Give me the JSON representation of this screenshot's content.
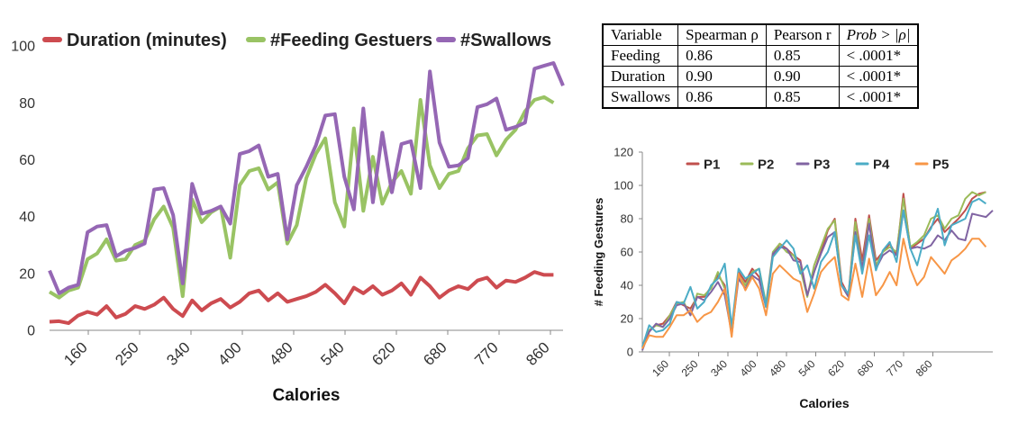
{
  "chart_data": [
    {
      "type": "line",
      "title": "",
      "xlabel": "Calories",
      "ylabel": "",
      "ylim": [
        0,
        100
      ],
      "yticks": [
        0,
        20,
        40,
        60,
        80,
        100
      ],
      "xtick_labels": [
        "160",
        "250",
        "340",
        "400",
        "480",
        "540",
        "620",
        "680",
        "770",
        "860"
      ],
      "legend_position": "top",
      "grid": false,
      "series": [
        {
          "name": "Duration (minutes)",
          "color": "#cd4b50",
          "values": [
            3,
            3.2,
            2.5,
            5.2,
            6.5,
            5.5,
            8.5,
            4.5,
            5.8,
            8.5,
            7.5,
            9,
            11.5,
            7.5,
            5,
            10.5,
            7,
            9.5,
            11,
            8,
            10,
            13,
            14,
            10.5,
            13,
            10,
            11,
            12,
            13.5,
            16,
            13,
            9.5,
            15,
            13,
            15.5,
            12.5,
            14,
            16.5,
            12.5,
            18.5,
            15.5,
            11.5,
            14,
            15.5,
            14.5,
            17.5,
            18.5,
            15,
            17.5,
            17,
            18.5,
            20.5,
            19.5,
            19.5
          ]
        },
        {
          "name": "#Feeding Gestuers",
          "color": "#99c364",
          "values": [
            13.5,
            11.5,
            14,
            15,
            25,
            27,
            32,
            24.5,
            25,
            30,
            31.5,
            39,
            43.5,
            36,
            12,
            46,
            38,
            41.5,
            43.5,
            25.5,
            51,
            56,
            57,
            49.5,
            52,
            30.5,
            37,
            53.5,
            62,
            67.5,
            45,
            36.5,
            71,
            42,
            61,
            44.5,
            52,
            56,
            48,
            81,
            58,
            50,
            55,
            56,
            64,
            68.5,
            69,
            61.5,
            67,
            70.5,
            77,
            81,
            82,
            80
          ]
        },
        {
          "name": "#Swallows",
          "color": "#9567b4",
          "values": [
            21,
            13,
            15,
            16,
            34.5,
            36.5,
            37,
            26,
            28,
            29,
            30.5,
            49.5,
            50,
            40.5,
            16.5,
            51.5,
            41,
            42,
            43.5,
            37.5,
            62,
            63,
            65,
            54,
            55,
            32,
            51,
            57.5,
            65,
            75.5,
            76,
            54,
            42.5,
            78,
            45,
            69.5,
            48.5,
            65.5,
            66.5,
            50,
            91,
            66,
            57.5,
            58,
            60.5,
            78.5,
            79.5,
            81.5,
            70.5,
            71.5,
            73,
            92,
            93,
            94,
            86
          ]
        }
      ]
    },
    {
      "type": "line",
      "title": "",
      "xlabel": "Calories",
      "ylabel": "# Feeding Gestures",
      "ylim": [
        0,
        120
      ],
      "yticks": [
        0,
        20,
        40,
        60,
        80,
        100,
        120
      ],
      "xtick_labels": [
        "160",
        "250",
        "340",
        "400",
        "480",
        "540",
        "620",
        "680",
        "770",
        "860"
      ],
      "legend_position": "top",
      "grid": false,
      "series": [
        {
          "name": "P1",
          "color": "#c0504d",
          "values": [
            3,
            13,
            16,
            17,
            22,
            30,
            28,
            26,
            33,
            33,
            39,
            46,
            40,
            10,
            48,
            42,
            50,
            45,
            28,
            58,
            65,
            62,
            58,
            55,
            34,
            48,
            60,
            73,
            80,
            42,
            34,
            80,
            55,
            82,
            55,
            60,
            65,
            58,
            95,
            62,
            65,
            68,
            75,
            80,
            72,
            76,
            80,
            85,
            92,
            95,
            96
          ]
        },
        {
          "name": "P2",
          "color": "#9bbb59",
          "values": [
            2,
            13,
            16,
            15,
            22,
            29,
            30,
            22,
            35,
            34,
            38,
            48,
            38,
            12,
            46,
            40,
            48,
            50,
            29,
            60,
            65,
            60,
            58,
            50,
            33,
            52,
            63,
            74,
            79,
            40,
            33,
            78,
            50,
            80,
            52,
            60,
            63,
            60,
            92,
            63,
            66,
            70,
            80,
            82,
            74,
            80,
            82,
            92,
            96,
            94,
            96
          ]
        },
        {
          "name": "P3",
          "color": "#8064a2",
          "values": [
            1,
            12,
            17,
            15,
            20,
            28,
            29,
            22,
            33,
            31,
            36,
            42,
            34,
            11,
            44,
            38,
            46,
            43,
            27,
            59,
            63,
            62,
            55,
            54,
            34,
            48,
            59,
            69,
            72,
            40,
            33,
            72,
            50,
            77,
            50,
            58,
            61,
            58,
            85,
            62,
            63,
            62,
            64,
            70,
            67,
            73,
            68,
            67,
            83,
            82,
            81,
            85
          ]
        },
        {
          "name": "P4",
          "color": "#4bacc6",
          "values": [
            3,
            16,
            12,
            13,
            17,
            30,
            29,
            39,
            26,
            30,
            40,
            44,
            53,
            15,
            50,
            44,
            47,
            50,
            27,
            57,
            62,
            67,
            62,
            47,
            52,
            38,
            54,
            60,
            72,
            40,
            35,
            70,
            47,
            70,
            49,
            61,
            66,
            54,
            85,
            62,
            52,
            68,
            74,
            86,
            64,
            76,
            78,
            80,
            90,
            92,
            89
          ]
        },
        {
          "name": "P5",
          "color": "#f79646",
          "values": [
            2,
            10,
            9,
            9,
            15,
            22,
            22,
            25,
            18,
            22,
            24,
            30,
            38,
            9,
            47,
            37,
            45,
            38,
            22,
            47,
            52,
            48,
            44,
            42,
            24,
            35,
            48,
            53,
            57,
            34,
            31,
            53,
            33,
            56,
            34,
            40,
            48,
            40,
            68,
            50,
            40,
            45,
            57,
            52,
            47,
            55,
            58,
            62,
            68,
            68,
            63
          ]
        }
      ]
    }
  ],
  "table": {
    "headers": [
      "Variable",
      "Spearman ρ",
      "Pearson r",
      "Prob > |ρ|"
    ],
    "rows": [
      [
        "Feeding",
        "0.86",
        "0.85",
        "< .0001*"
      ],
      [
        "Duration",
        "0.90",
        "0.90",
        "< .0001*"
      ],
      [
        "Swallows",
        "0.86",
        "0.85",
        "< .0001*"
      ]
    ]
  }
}
